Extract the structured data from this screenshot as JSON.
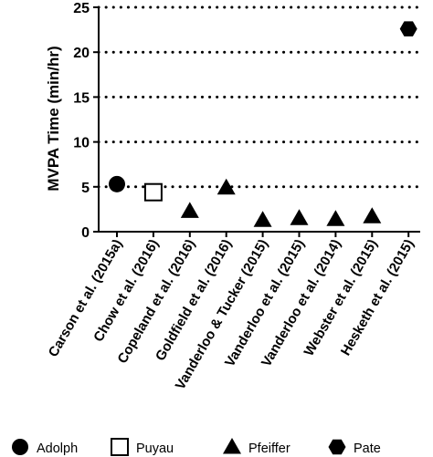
{
  "chart_data": {
    "type": "scatter",
    "ylabel": "MVPA Time (min/hr)",
    "ylim": [
      0,
      25
    ],
    "yticks": [
      0,
      5,
      10,
      15,
      20,
      25
    ],
    "grid": "horizontal dotted",
    "categories": [
      "Carson et al. (2015a)",
      "Chow et al. (2016)",
      "Copeland et al. (2016)",
      "Goldfield et al. (2016)",
      "Vanderloo & Tucker (2015)",
      "Vanderloo et al. (2015)",
      "Vanderloo et al. (2014)",
      "Webster et al. (2015)",
      "Hesketh et al. (2015)"
    ],
    "series": [
      {
        "name": "Adolph",
        "marker": "circle",
        "points": [
          {
            "category": "Carson et al. (2015a)",
            "value": 5.3
          }
        ]
      },
      {
        "name": "Puyau",
        "marker": "open-square",
        "points": [
          {
            "category": "Chow et al. (2016)",
            "value": 4.4
          }
        ]
      },
      {
        "name": "Pfeiffer",
        "marker": "triangle",
        "points": [
          {
            "category": "Copeland et al. (2016)",
            "value": 2.3
          },
          {
            "category": "Goldfield et al. (2016)",
            "value": 4.9
          },
          {
            "category": "Vanderloo & Tucker (2015)",
            "value": 1.3
          },
          {
            "category": "Vanderloo et al. (2015)",
            "value": 1.5
          },
          {
            "category": "Vanderloo et al. (2014)",
            "value": 1.4
          },
          {
            "category": "Webster et al. (2015)",
            "value": 1.7
          }
        ]
      },
      {
        "name": "Pate",
        "marker": "hexagon",
        "points": [
          {
            "category": "Hesketh et al. (2015)",
            "value": 22.6
          }
        ]
      }
    ],
    "legend_position": "bottom"
  }
}
